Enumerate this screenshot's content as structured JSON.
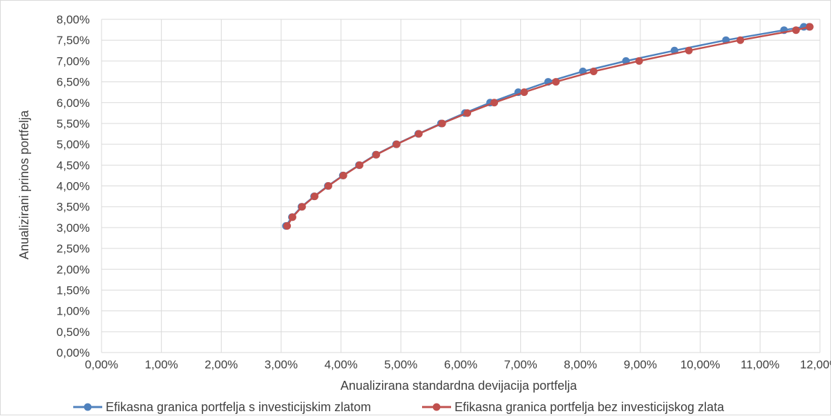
{
  "chart_data": {
    "type": "scatter",
    "title": "",
    "xlabel": "Anualizirana standardna devijacija portfelja",
    "ylabel": "Anualizirani prinos portfelja",
    "xlim": [
      0,
      12
    ],
    "ylim": [
      0,
      8
    ],
    "x_ticks": [
      "0,00%",
      "1,00%",
      "2,00%",
      "3,00%",
      "4,00%",
      "5,00%",
      "6,00%",
      "7,00%",
      "8,00%",
      "9,00%",
      "10,00%",
      "11,00%",
      "12,00%"
    ],
    "y_ticks": [
      "0,00%",
      "0,50%",
      "1,00%",
      "1,50%",
      "2,00%",
      "2,50%",
      "3,00%",
      "3,50%",
      "4,00%",
      "4,50%",
      "5,00%",
      "5,50%",
      "6,00%",
      "6,50%",
      "7,00%",
      "7,50%",
      "8,00%"
    ],
    "grid": true,
    "legend_position": "bottom",
    "series": [
      {
        "name": "Efikasna granica portfelja s investicijskim zlatom",
        "color": "#4f81bd",
        "points": [
          [
            3.08,
            3.04
          ],
          [
            3.18,
            3.25
          ],
          [
            3.34,
            3.5
          ],
          [
            3.55,
            3.75
          ],
          [
            3.78,
            4.0
          ],
          [
            4.03,
            4.25
          ],
          [
            4.3,
            4.5
          ],
          [
            4.58,
            4.75
          ],
          [
            4.92,
            5.0
          ],
          [
            5.29,
            5.25
          ],
          [
            5.67,
            5.5
          ],
          [
            6.07,
            5.75
          ],
          [
            6.49,
            6.0
          ],
          [
            6.96,
            6.25
          ],
          [
            7.46,
            6.5
          ],
          [
            8.04,
            6.75
          ],
          [
            8.76,
            7.0
          ],
          [
            9.57,
            7.25
          ],
          [
            10.43,
            7.5
          ],
          [
            11.4,
            7.74
          ],
          [
            11.73,
            7.82
          ],
          [
            11.82,
            7.82
          ]
        ]
      },
      {
        "name": "Efikasna granica portfelja bez investicijskog zlata",
        "color": "#c0504d",
        "points": [
          [
            3.1,
            3.04
          ],
          [
            3.19,
            3.25
          ],
          [
            3.35,
            3.5
          ],
          [
            3.56,
            3.75
          ],
          [
            3.79,
            4.0
          ],
          [
            4.04,
            4.25
          ],
          [
            4.31,
            4.5
          ],
          [
            4.59,
            4.75
          ],
          [
            4.93,
            5.0
          ],
          [
            5.3,
            5.25
          ],
          [
            5.69,
            5.5
          ],
          [
            6.11,
            5.75
          ],
          [
            6.56,
            6.0
          ],
          [
            7.06,
            6.25
          ],
          [
            7.59,
            6.5
          ],
          [
            8.22,
            6.75
          ],
          [
            8.98,
            7.0
          ],
          [
            9.81,
            7.25
          ],
          [
            10.67,
            7.5
          ],
          [
            11.6,
            7.74
          ],
          [
            11.83,
            7.82
          ]
        ]
      }
    ]
  }
}
